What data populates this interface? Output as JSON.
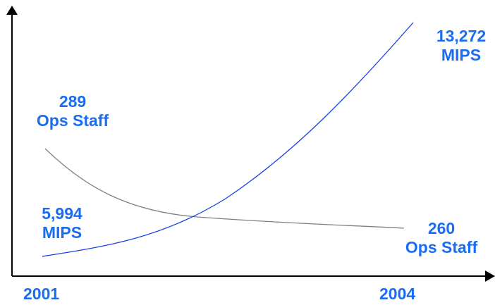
{
  "chart_data": {
    "type": "line",
    "x": [
      2001,
      2004
    ],
    "x_tick_labels": [
      "2001",
      "2004"
    ],
    "series": [
      {
        "name": "MIPS",
        "start": {
          "x": 2001,
          "y": 5994,
          "label_value": "5,994",
          "label_unit": "MIPS"
        },
        "end": {
          "x": 2004,
          "y": 13272,
          "label_value": "13,272",
          "label_unit": "MIPS"
        },
        "color": "#1a3fe8"
      },
      {
        "name": "Ops Staff",
        "start": {
          "x": 2001,
          "y": 289,
          "label_value": "289",
          "label_unit": "Ops Staff"
        },
        "end": {
          "x": 2004,
          "y": 260,
          "label_value": "260",
          "label_unit": "Ops Staff"
        },
        "color": "#808080"
      }
    ],
    "title": "",
    "xlabel": "",
    "ylabel": "",
    "grid": false,
    "legend": "none",
    "label_color": "#1a6df0"
  }
}
